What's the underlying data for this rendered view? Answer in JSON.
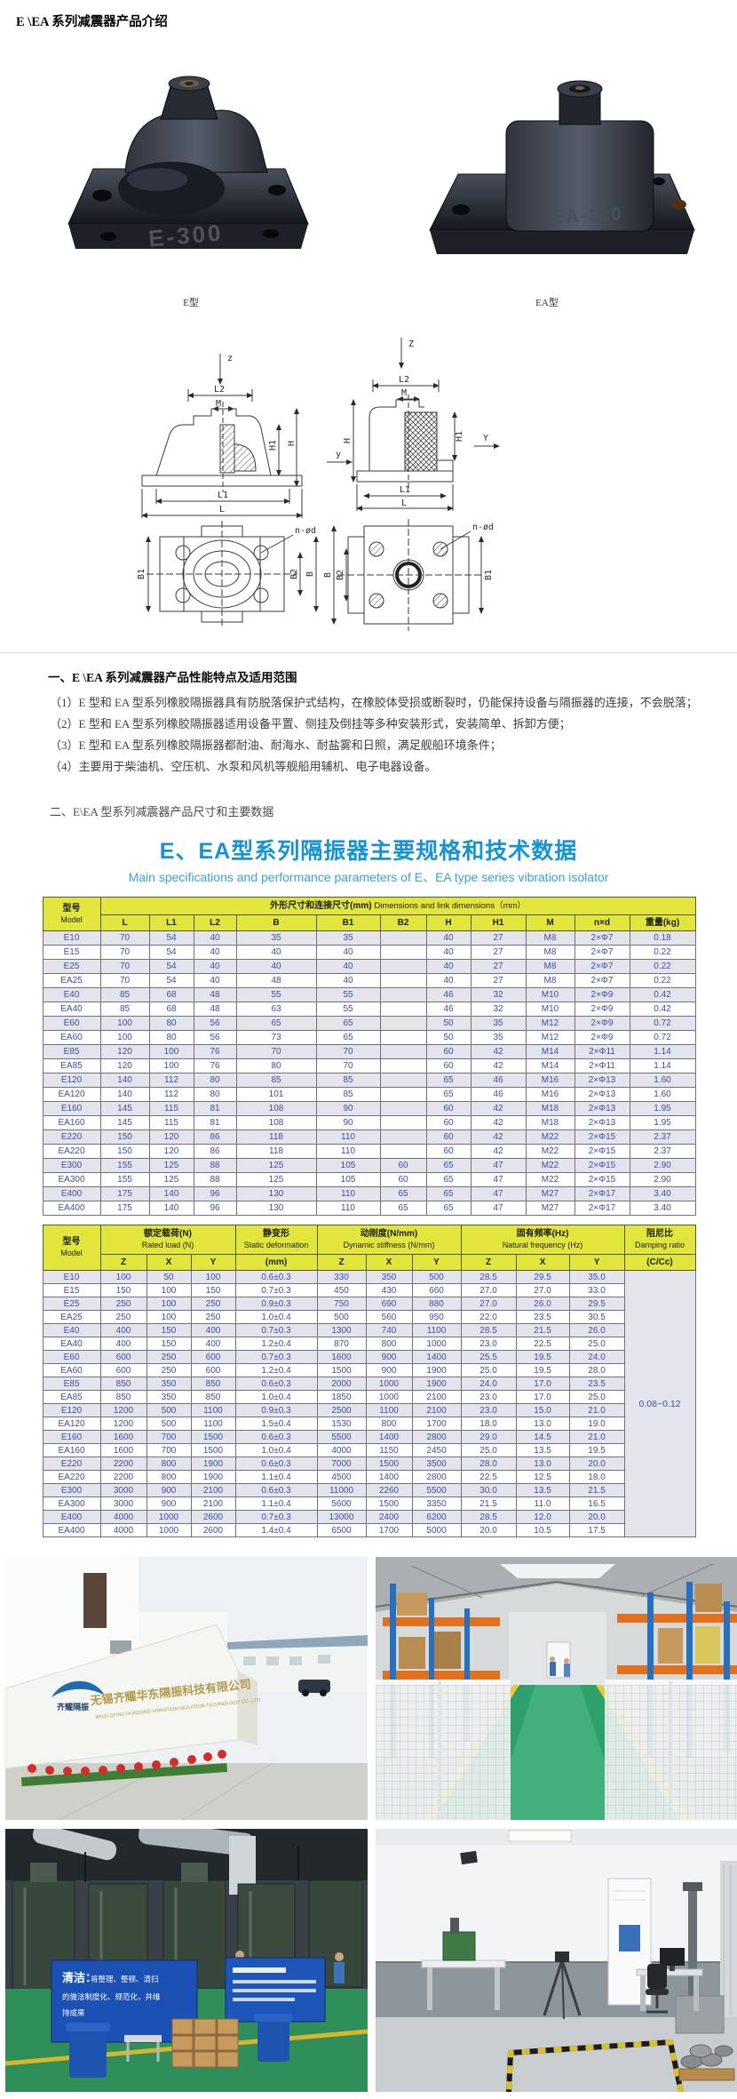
{
  "page": {
    "title": "E \\EA 系列减震器产品介绍"
  },
  "product_photos": {
    "left": {
      "marking": "E-300",
      "caption": "E型"
    },
    "right": {
      "marking": "EA-120",
      "caption": "EA型"
    }
  },
  "diagram_labels": {
    "z_lower": "z",
    "z_upper": "Z",
    "y_lower": "y",
    "y_upper": "Y",
    "L": "L",
    "L1": "L1",
    "L2": "L2",
    "M": "M",
    "H": "H",
    "H1": "H1",
    "B": "B",
    "B1": "B1",
    "B2": "B2",
    "n_od": "n-ød"
  },
  "features": {
    "heading": "一、E \\EA 系列减震器产品性能特点及适用范围",
    "items": [
      "（1）E 型和 EA 型系列橡胶隔振器具有防脱落保护式结构，在橡胶体受损或断裂时，仍能保持设备与隔振器的连接，不会脱落；",
      "（2）E 型和 EA 型系列橡胶隔振器适用设备平置、侧挂及倒挂等多种安装形式，安装简单、拆卸方便；",
      "（3）E 型和 EA 型系列橡胶隔振器都耐油、耐海水、耐盐雾和日照，满足舰船环境条件；",
      "（4）主要用于柴油机、空压机、水泵和风机等舰船用辅机、电子电器设备。"
    ]
  },
  "section2_heading": "二、E\\EA 型系列减震器产品尺寸和主要数据",
  "spec_panel": {
    "title": "E、EA型系列隔振器主要规格和技术数据",
    "subtitle": "Main specifications and performance parameters of E、EA type series vibration isolator",
    "dim_table": {
      "model_cn": "型号",
      "model_en": "Model",
      "group_cn": "外形尺寸和连接尺寸(mm)",
      "group_en": "Dimensions and link dimensions（mm）",
      "columns": [
        "L",
        "L1",
        "L2",
        "B",
        "B1",
        "B2",
        "H",
        "H1",
        "M",
        "n×d",
        "重量(kg)"
      ],
      "rows": [
        [
          "E10",
          "70",
          "54",
          "40",
          "35",
          "35",
          "",
          "40",
          "27",
          "M8",
          "2×Φ7",
          "0.18"
        ],
        [
          "E15",
          "70",
          "54",
          "40",
          "40",
          "40",
          "",
          "40",
          "27",
          "M8",
          "2×Φ7",
          "0.22"
        ],
        [
          "E25",
          "70",
          "54",
          "40",
          "40",
          "40",
          "",
          "40",
          "27",
          "M8",
          "2×Φ7",
          "0.22"
        ],
        [
          "EA25",
          "70",
          "54",
          "40",
          "48",
          "40",
          "",
          "40",
          "27",
          "M8",
          "2×Φ7",
          "0.22"
        ],
        [
          "E40",
          "85",
          "68",
          "48",
          "55",
          "55",
          "",
          "46",
          "32",
          "M10",
          "2×Φ9",
          "0.42"
        ],
        [
          "EA40",
          "85",
          "68",
          "48",
          "63",
          "55",
          "",
          "46",
          "32",
          "M10",
          "2×Φ9",
          "0.42"
        ],
        [
          "E60",
          "100",
          "80",
          "56",
          "65",
          "65",
          "",
          "50",
          "35",
          "M12",
          "2×Φ9",
          "0.72"
        ],
        [
          "EA60",
          "100",
          "80",
          "56",
          "73",
          "65",
          "",
          "50",
          "35",
          "M12",
          "2×Φ9",
          "0.72"
        ],
        [
          "E85",
          "120",
          "100",
          "76",
          "70",
          "70",
          "",
          "60",
          "42",
          "M14",
          "2×Φ11",
          "1.14"
        ],
        [
          "EA85",
          "120",
          "100",
          "76",
          "80",
          "70",
          "",
          "60",
          "42",
          "M14",
          "2×Φ11",
          "1.14"
        ],
        [
          "E120",
          "140",
          "112",
          "80",
          "85",
          "85",
          "",
          "65",
          "46",
          "M16",
          "2×Φ13",
          "1.60"
        ],
        [
          "EA120",
          "140",
          "112",
          "80",
          "101",
          "85",
          "",
          "65",
          "46",
          "M16",
          "2×Φ13",
          "1.60"
        ],
        [
          "E160",
          "145",
          "115",
          "81",
          "108",
          "90",
          "",
          "60",
          "42",
          "M18",
          "2×Φ13",
          "1.95"
        ],
        [
          "EA160",
          "145",
          "115",
          "81",
          "108",
          "90",
          "",
          "60",
          "42",
          "M18",
          "2×Φ13",
          "1.95"
        ],
        [
          "E220",
          "150",
          "120",
          "86",
          "118",
          "110",
          "",
          "60",
          "42",
          "M22",
          "2×Φ15",
          "2.37"
        ],
        [
          "EA220",
          "150",
          "120",
          "86",
          "118",
          "110",
          "",
          "60",
          "42",
          "M22",
          "2×Φ15",
          "2.37"
        ],
        [
          "E300",
          "155",
          "125",
          "88",
          "125",
          "105",
          "60",
          "65",
          "47",
          "M22",
          "2×Φ15",
          "2.90"
        ],
        [
          "EA300",
          "155",
          "125",
          "88",
          "125",
          "105",
          "60",
          "65",
          "47",
          "M22",
          "2×Φ15",
          "2.90"
        ],
        [
          "E400",
          "175",
          "140",
          "96",
          "130",
          "110",
          "65",
          "65",
          "47",
          "M27",
          "2×Φ17",
          "3.40"
        ],
        [
          "EA400",
          "175",
          "140",
          "96",
          "130",
          "110",
          "65",
          "65",
          "47",
          "M27",
          "2×Φ17",
          "3.40"
        ]
      ]
    },
    "perf_table": {
      "model_cn": "型号",
      "model_en": "Model",
      "groups": [
        {
          "cn": "额定载荷(N)",
          "en": "Rated load (N)",
          "subs": [
            "Z",
            "X",
            "Y"
          ]
        },
        {
          "cn": "静变形",
          "en": "Static deformation",
          "subs": [
            "(mm)"
          ]
        },
        {
          "cn": "动刚度(N/mm)",
          "en": "Dynamic stiffness (N/mm)",
          "subs": [
            "Z",
            "X",
            "Y"
          ]
        },
        {
          "cn": "固有频率(Hz)",
          "en": "Natural frequency (Hz)",
          "subs": [
            "Z",
            "X",
            "Y"
          ]
        },
        {
          "cn": "阻尼比",
          "en": "Damping ratio",
          "subs": [
            "(C/Cc)"
          ]
        }
      ],
      "rows": [
        [
          "E10",
          "100",
          "50",
          "100",
          "0.6±0.3",
          "330",
          "350",
          "500",
          "28.5",
          "29.5",
          "35.0"
        ],
        [
          "E15",
          "150",
          "100",
          "150",
          "0.7±0.3",
          "450",
          "430",
          "660",
          "27.0",
          "27.0",
          "33.0"
        ],
        [
          "E25",
          "250",
          "100",
          "250",
          "0.9±0.3",
          "750",
          "690",
          "880",
          "27.0",
          "26.0",
          "29.5"
        ],
        [
          "EA25",
          "250",
          "100",
          "250",
          "1.0±0.4",
          "500",
          "560",
          "950",
          "22.0",
          "23.5",
          "30.5"
        ],
        [
          "E40",
          "400",
          "150",
          "400",
          "0.7±0.3",
          "1300",
          "740",
          "1100",
          "28.5",
          "21.5",
          "26.0"
        ],
        [
          "EA40",
          "400",
          "150",
          "400",
          "1.2±0.4",
          "870",
          "800",
          "1000",
          "23.0",
          "22.5",
          "25.0"
        ],
        [
          "E60",
          "600",
          "250",
          "600",
          "0.7±0.3",
          "1600",
          "900",
          "1400",
          "25.5",
          "19.5",
          "24.0"
        ],
        [
          "EA60",
          "600",
          "250",
          "600",
          "1.2±0.4",
          "1500",
          "900",
          "1900",
          "25.0",
          "19.5",
          "28.0"
        ],
        [
          "E85",
          "850",
          "350",
          "850",
          "0.6±0.3",
          "2000",
          "1000",
          "1900",
          "24.0",
          "17.0",
          "23.5"
        ],
        [
          "EA85",
          "850",
          "350",
          "850",
          "1.0±0.4",
          "1850",
          "1000",
          "2100",
          "23.0",
          "17.0",
          "25.0"
        ],
        [
          "E120",
          "1200",
          "500",
          "1100",
          "0.9±0.3",
          "2500",
          "1100",
          "2100",
          "23.0",
          "15.0",
          "21.0"
        ],
        [
          "EA120",
          "1200",
          "500",
          "1100",
          "1.5±0.4",
          "1530",
          "800",
          "1700",
          "18.0",
          "13.0",
          "19.0"
        ],
        [
          "E160",
          "1600",
          "700",
          "1500",
          "0.6±0.3",
          "5500",
          "1400",
          "2800",
          "29.0",
          "14.5",
          "21.0"
        ],
        [
          "EA160",
          "1600",
          "700",
          "1500",
          "1.0±0.4",
          "4000",
          "1150",
          "2450",
          "25.0",
          "13.5",
          "19.5"
        ],
        [
          "E220",
          "2200",
          "800",
          "1900",
          "0.6±0.3",
          "7000",
          "1500",
          "3500",
          "28.0",
          "13.0",
          "20.0"
        ],
        [
          "EA220",
          "2200",
          "800",
          "1900",
          "1.1±0.4",
          "4500",
          "1400",
          "2800",
          "22.5",
          "12.5",
          "18.0"
        ],
        [
          "E300",
          "3000",
          "900",
          "2100",
          "0.6±0.3",
          "11000",
          "2260",
          "5500",
          "30.0",
          "13.5",
          "21.5"
        ],
        [
          "EA300",
          "3000",
          "900",
          "2100",
          "1.1±0.4",
          "5600",
          "1500",
          "3350",
          "21.5",
          "11.0",
          "16.5"
        ],
        [
          "E400",
          "4000",
          "1000",
          "2600",
          "0.7±0.3",
          "13000",
          "2400",
          "6200",
          "28.5",
          "12.0",
          "20.0"
        ],
        [
          "EA400",
          "4000",
          "1000",
          "2600",
          "1.4±0.4",
          "6500",
          "1700",
          "5000",
          "20.0",
          "10.5",
          "17.5"
        ]
      ],
      "damping_value": "0.08~0.12"
    }
  },
  "factory_photos": {
    "entrance": {
      "sign_cn": "无锡齐耀华东隔振科技有限公司",
      "sign_en": "WUXI QIYAO HUADONG VIBRATION ISOLATION TECHNOLOGY CO.,LTD",
      "logo": "齐耀隔振"
    },
    "workshop_board": {
      "title": "清洁：",
      "lines": [
        "将整理、整顿、清扫",
        "的做法制度化、规范化，并维",
        "持成果"
      ]
    }
  }
}
